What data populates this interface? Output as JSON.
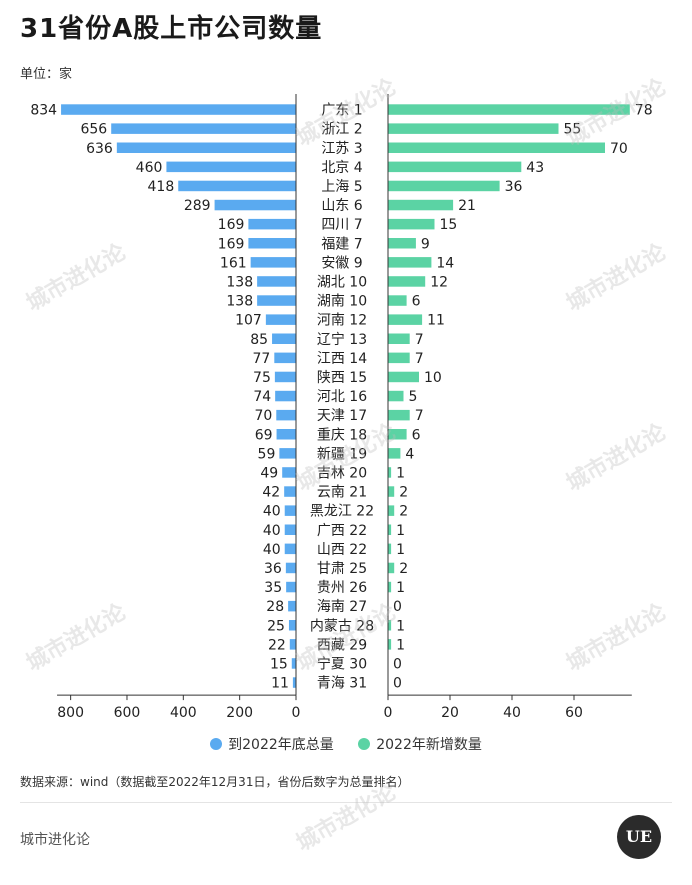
{
  "title": "31省份A股上市公司数量",
  "unit": "单位：家",
  "legend": {
    "left": "到2022年底总量",
    "right": "2022年新增数量"
  },
  "source": "数据来源：wind（数据截至2022年12月31日，省份后数字为总量排名）",
  "brand": "城市进化论",
  "logo": "UE",
  "watermark": "城市进化论",
  "colors": {
    "left": "#5aaaf0",
    "right": "#5bd3a4",
    "axis": "#333333"
  },
  "chart_data": {
    "type": "bar",
    "categories": [
      "广东 1",
      "浙江 2",
      "江苏 3",
      "北京 4",
      "上海 5",
      "山东 6",
      "四川 7",
      "福建 7",
      "安徽 9",
      "湖北 10",
      "湖南 10",
      "河南 12",
      "辽宁 13",
      "江西 14",
      "陕西 15",
      "河北 16",
      "天津 17",
      "重庆 18",
      "新疆 19",
      "吉林 20",
      "云南 21",
      "黑龙江 22",
      "广西 22",
      "山西 22",
      "甘肃 25",
      "贵州 26",
      "海南 27",
      "内蒙古 28",
      "西藏 29",
      "宁夏 30",
      "青海 31"
    ],
    "series": [
      {
        "name": "到2022年底总量",
        "values": [
          834,
          656,
          636,
          460,
          418,
          289,
          169,
          169,
          161,
          138,
          138,
          107,
          85,
          77,
          75,
          74,
          70,
          69,
          59,
          49,
          42,
          40,
          40,
          40,
          36,
          35,
          28,
          25,
          22,
          15,
          11
        ]
      },
      {
        "name": "2022年新增数量",
        "values": [
          78,
          55,
          70,
          43,
          36,
          21,
          15,
          9,
          14,
          12,
          6,
          11,
          7,
          7,
          10,
          5,
          7,
          6,
          4,
          1,
          2,
          2,
          1,
          1,
          2,
          1,
          0,
          1,
          1,
          0,
          0
        ]
      }
    ],
    "left_axis": {
      "ticks": [
        800,
        600,
        400,
        200,
        0
      ],
      "range": [
        0,
        834
      ]
    },
    "right_axis": {
      "ticks": [
        0,
        20,
        40,
        60
      ],
      "range": [
        0,
        78
      ]
    }
  }
}
